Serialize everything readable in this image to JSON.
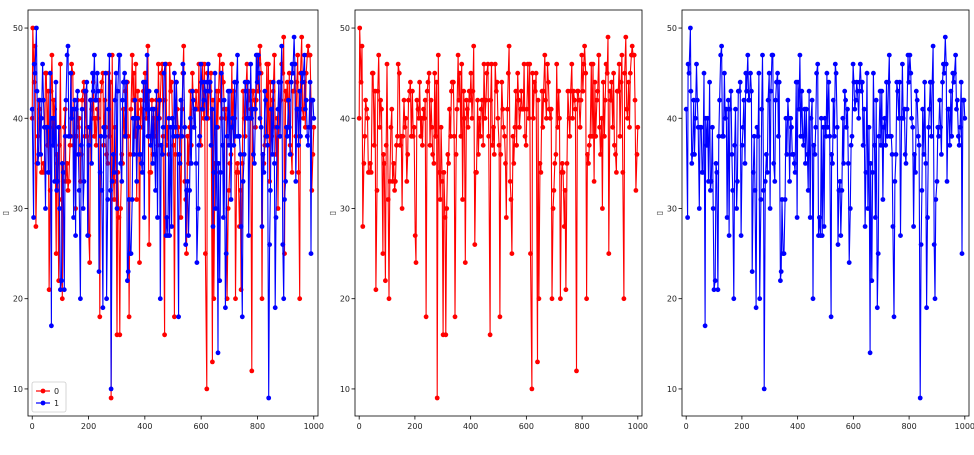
{
  "chart_data": [
    {
      "type": "line",
      "xlabel": "",
      "ylabel": "▯",
      "xlim": [
        -15,
        1015
      ],
      "ylim": [
        7,
        52
      ],
      "xticks": [
        0,
        200,
        400,
        600,
        800,
        1000
      ],
      "yticks": [
        10,
        20,
        30,
        40,
        50
      ],
      "grid": false,
      "legend": {
        "placement": "lower-left",
        "entries": [
          "0",
          "1"
        ]
      },
      "series": [
        {
          "name": "0",
          "color": "#ff0000",
          "seed": 11,
          "n": 300,
          "x_max": 1000,
          "value_range": [
            9,
            50
          ],
          "pinned": [
            [
              2,
              50
            ],
            [
              10,
              48
            ],
            [
              85,
              25
            ],
            [
              240,
              18
            ],
            [
              280,
              9
            ],
            [
              470,
              16
            ],
            [
              620,
              10
            ],
            [
              640,
              13
            ],
            [
              780,
              12
            ],
            [
              950,
              20
            ]
          ]
        },
        {
          "name": "1",
          "color": "#0000ff",
          "seed": 23,
          "n": 300,
          "x_max": 1000,
          "value_range": [
            9,
            50
          ],
          "pinned": [
            [
              5,
              29
            ],
            [
              15,
              50
            ],
            [
              68,
              17
            ],
            [
              280,
              10
            ],
            [
              520,
              18
            ],
            [
              660,
              14
            ],
            [
              840,
              9
            ],
            [
              990,
              25
            ]
          ]
        }
      ]
    },
    {
      "type": "line",
      "xlabel": "",
      "ylabel": "▯",
      "xlim": [
        -15,
        1015
      ],
      "ylim": [
        7,
        52
      ],
      "xticks": [
        0,
        200,
        400,
        600,
        800,
        1000
      ],
      "yticks": [
        10,
        20,
        30,
        40,
        50
      ],
      "grid": false,
      "series": [
        {
          "name": "0",
          "color": "#ff0000",
          "seed": 11,
          "n": 300,
          "x_max": 1000,
          "value_range": [
            9,
            50
          ],
          "pinned": [
            [
              2,
              50
            ],
            [
              10,
              48
            ],
            [
              85,
              25
            ],
            [
              240,
              18
            ],
            [
              280,
              9
            ],
            [
              470,
              16
            ],
            [
              620,
              10
            ],
            [
              640,
              13
            ],
            [
              780,
              12
            ],
            [
              950,
              20
            ]
          ]
        }
      ]
    },
    {
      "type": "line",
      "xlabel": "",
      "ylabel": "▯",
      "xlim": [
        -15,
        1015
      ],
      "ylim": [
        7,
        52
      ],
      "xticks": [
        0,
        200,
        400,
        600,
        800,
        1000
      ],
      "yticks": [
        10,
        20,
        30,
        40,
        50
      ],
      "grid": false,
      "series": [
        {
          "name": "1",
          "color": "#0000ff",
          "seed": 23,
          "n": 300,
          "x_max": 1000,
          "value_range": [
            9,
            50
          ],
          "pinned": [
            [
              5,
              29
            ],
            [
              15,
              50
            ],
            [
              68,
              17
            ],
            [
              280,
              10
            ],
            [
              520,
              18
            ],
            [
              660,
              14
            ],
            [
              840,
              9
            ],
            [
              990,
              25
            ]
          ]
        }
      ]
    }
  ]
}
